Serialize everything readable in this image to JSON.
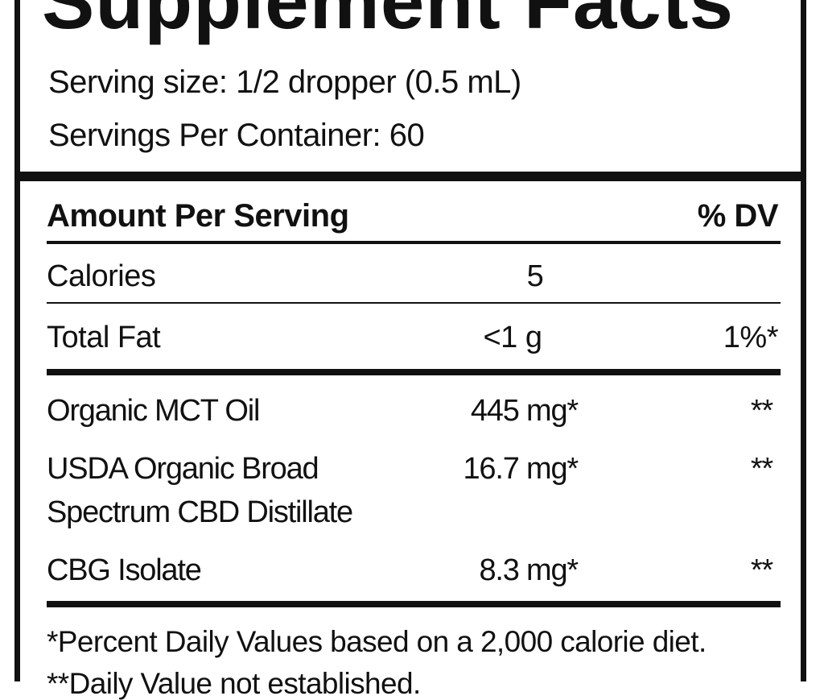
{
  "header": {
    "title": "Supplement Facts",
    "serving_size": "Serving size: 1/2 dropper (0.5 mL)",
    "servings_per_container": "Servings Per Container: 60"
  },
  "table": {
    "columns": [
      "Amount Per Serving",
      "% DV"
    ],
    "rows": [
      {
        "name": "Calories",
        "amount": "5"
      },
      {
        "name": "Total Fat",
        "amount": "<1 g",
        "dv": "1%*"
      }
    ],
    "ingredients": [
      {
        "name": "Organic MCT Oil",
        "amount": "445 mg*",
        "dv": "**"
      },
      {
        "name": "USDA Organic Broad Spectrum CBD Distillate",
        "amount": "16.7 mg*",
        "dv": "**"
      },
      {
        "name": "CBG Isolate",
        "amount": "8.3 mg*",
        "dv": "**"
      }
    ]
  },
  "footnotes": [
    "*Percent Daily Values based on a 2,000 calorie diet.",
    "**Daily Value not established."
  ]
}
